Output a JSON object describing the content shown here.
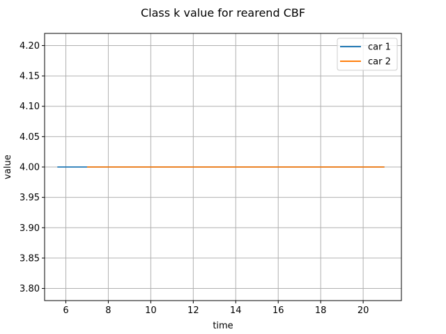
{
  "chart_data": {
    "type": "line",
    "title": "Class k value for rearend CBF",
    "xlabel": "time",
    "ylabel": "value",
    "xlim": [
      5.0,
      21.8
    ],
    "ylim": [
      3.78,
      4.22
    ],
    "xticks": [
      6,
      8,
      10,
      12,
      14,
      16,
      18,
      20
    ],
    "yticks": [
      3.8,
      3.85,
      3.9,
      3.95,
      4.0,
      4.05,
      4.1,
      4.15,
      4.2
    ],
    "ytick_labels": [
      "3.80",
      "3.85",
      "3.90",
      "3.95",
      "4.00",
      "4.05",
      "4.10",
      "4.15",
      "4.20"
    ],
    "grid": true,
    "legend_position": "top-right",
    "series": [
      {
        "name": "car 1",
        "color": "#1f77b4",
        "x": [
          5.6,
          21.0
        ],
        "y": [
          4.0,
          4.0
        ]
      },
      {
        "name": "car 2",
        "color": "#ff7f0e",
        "x": [
          7.0,
          21.0
        ],
        "y": [
          4.0,
          4.0
        ]
      }
    ]
  }
}
